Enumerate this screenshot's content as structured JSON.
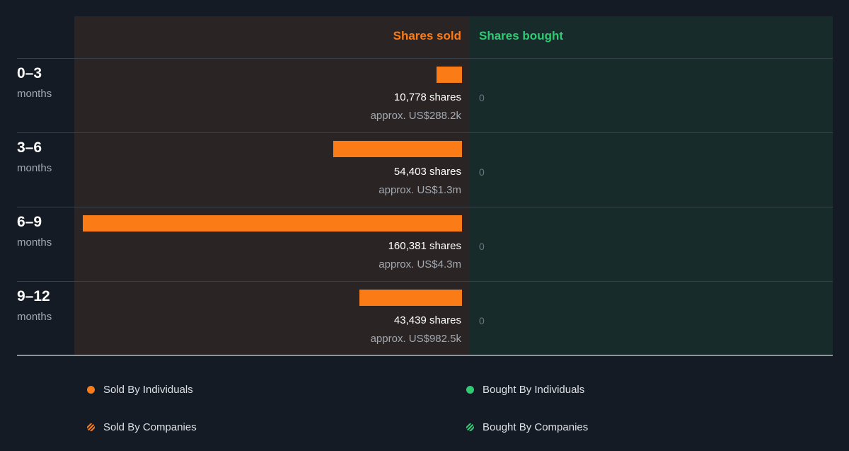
{
  "colors": {
    "sold": "#fb7b16",
    "bought": "#2ecb73",
    "sold_header": "#fb7b16",
    "bought_header": "#2ecb73"
  },
  "headers": {
    "sold": "Shares sold",
    "bought": "Shares bought"
  },
  "chart_data": {
    "type": "bar",
    "orientation": "horizontal",
    "categories": [
      "0–3",
      "3–6",
      "6–9",
      "9–12"
    ],
    "category_unit": "months",
    "series": [
      {
        "name": "Shares sold",
        "values": [
          10778,
          54403,
          160381,
          43439
        ],
        "labels": [
          "10,778 shares",
          "54,403 shares",
          "160,381 shares",
          "43,439 shares"
        ],
        "approx": [
          "approx. US$288.2k",
          "approx. US$1.3m",
          "approx. US$4.3m",
          "approx. US$982.5k"
        ]
      },
      {
        "name": "Shares bought",
        "values": [
          0,
          0,
          0,
          0
        ],
        "labels": [
          "0",
          "0",
          "0",
          "0"
        ]
      }
    ]
  },
  "rows": [
    {
      "range": "0–3",
      "unit": "months",
      "sold_label": "10,778 shares",
      "sold_value": "approx. US$288.2k",
      "bought_label": "0"
    },
    {
      "range": "3–6",
      "unit": "months",
      "sold_label": "54,403 shares",
      "sold_value": "approx. US$1.3m",
      "bought_label": "0"
    },
    {
      "range": "6–9",
      "unit": "months",
      "sold_label": "160,381 shares",
      "sold_value": "approx. US$4.3m",
      "bought_label": "0"
    },
    {
      "range": "9–12",
      "unit": "months",
      "sold_label": "43,439 shares",
      "sold_value": "approx. US$982.5k",
      "bought_label": "0"
    }
  ],
  "legend": [
    {
      "label": "Sold By Individuals",
      "icon": "solid-dot-icon",
      "color": "#fb7b16"
    },
    {
      "label": "Bought By Individuals",
      "icon": "solid-dot-icon",
      "color": "#2ecb73"
    },
    {
      "label": "Sold By Companies",
      "icon": "striped-dot-icon",
      "color": "#fb7b16"
    },
    {
      "label": "Bought By Companies",
      "icon": "striped-dot-icon",
      "color": "#2ecb73"
    }
  ]
}
